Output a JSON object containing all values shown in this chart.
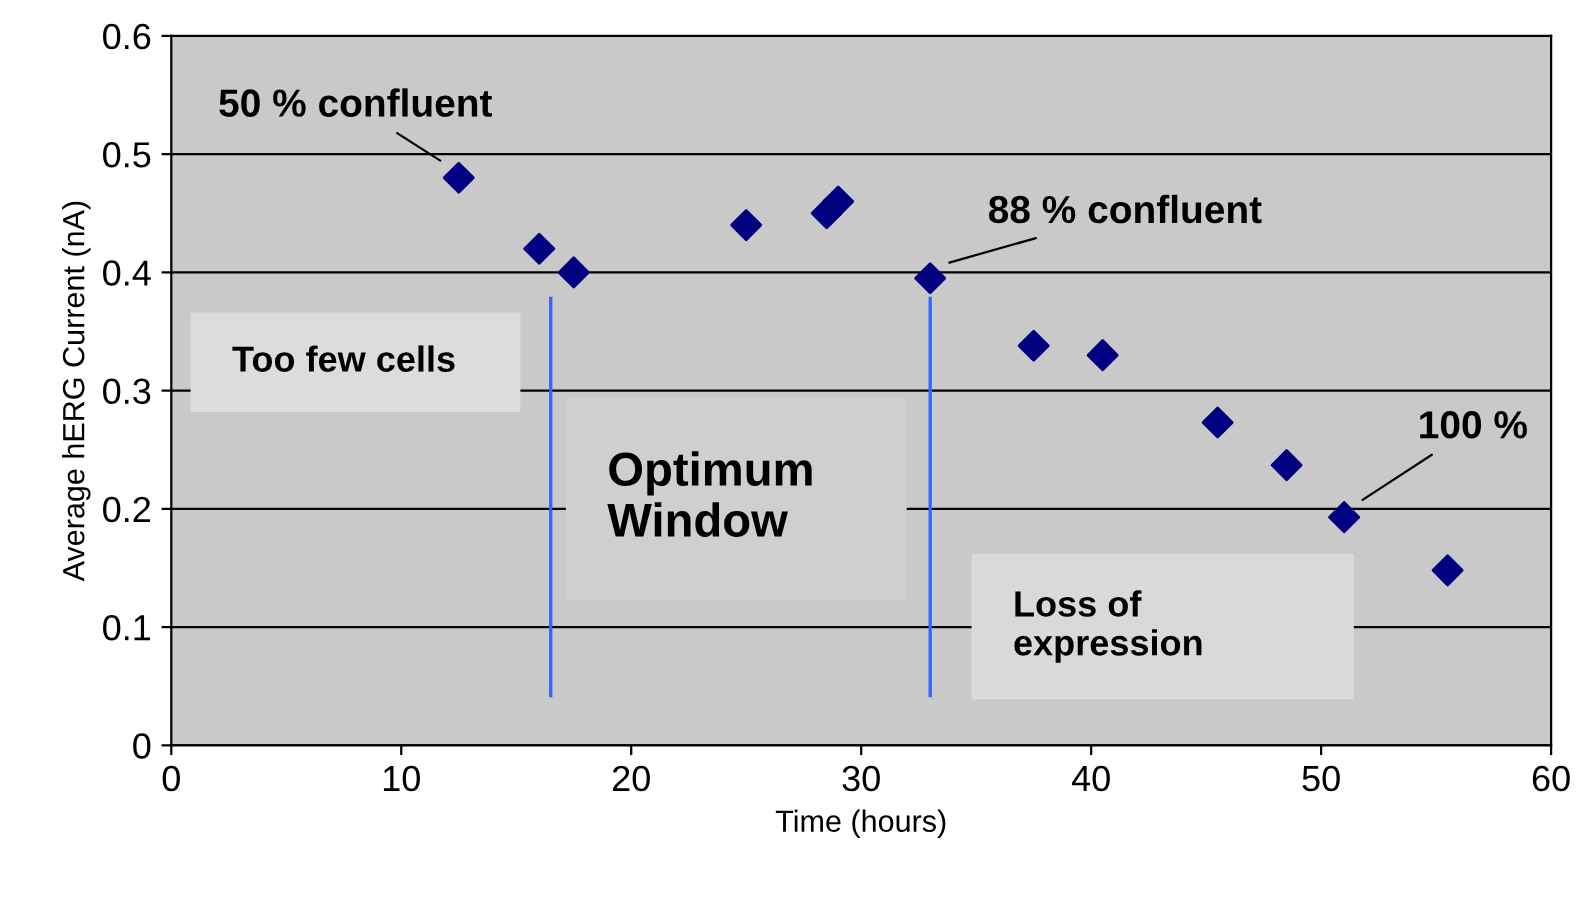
{
  "chart_data": {
    "type": "scatter",
    "xlabel": "Time (hours)",
    "ylabel": "Average hERG Current (nA)",
    "x": [
      12.5,
      16,
      17.5,
      25,
      28.5,
      29,
      33,
      37.5,
      40.5,
      45.5,
      48.5,
      51,
      55.5
    ],
    "values": [
      0.48,
      0.42,
      0.4,
      0.44,
      0.45,
      0.46,
      0.395,
      0.338,
      0.33,
      0.273,
      0.237,
      0.193,
      0.148
    ],
    "color": "#000080",
    "marker": "diamond",
    "grid": "y",
    "legend": false,
    "xlim": [
      0,
      60
    ],
    "xticks": [
      0,
      10,
      20,
      30,
      40,
      50,
      60
    ],
    "ylim": [
      0,
      0.6
    ],
    "yticks": [
      0,
      0.1,
      0.2,
      0.3,
      0.4,
      0.5,
      0.6
    ],
    "ref_lines": [
      {
        "axis": "x",
        "value": 16.5,
        "color": "#3366ff"
      },
      {
        "axis": "x",
        "value": 33,
        "color": "#3366ff"
      }
    ],
    "annotations": [
      {
        "text": "50 % confluent",
        "x": 12.5,
        "y": 0.48
      },
      {
        "text": "88 % confluent",
        "x": 33,
        "y": 0.395
      },
      {
        "text": "100 %",
        "x": 51,
        "y": 0.193
      },
      "Too few cells",
      "Optimum\nWindow",
      "Loss of\nexpression"
    ]
  }
}
